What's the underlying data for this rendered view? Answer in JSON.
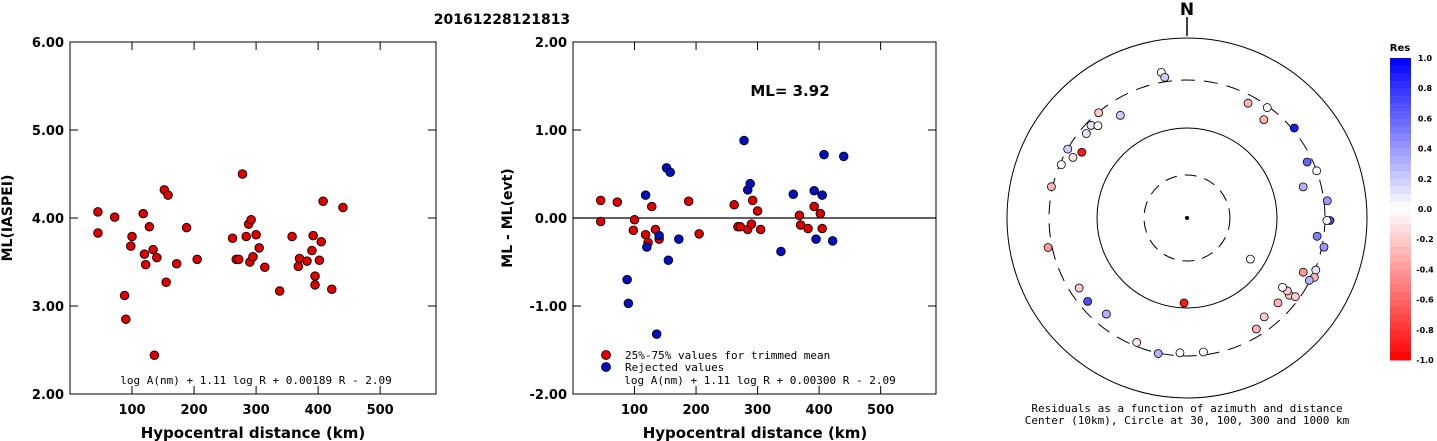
{
  "title": "20161228121813",
  "chart_data": [
    {
      "type": "scatter",
      "xlabel": "Hypocentral distance (km)",
      "ylabel": "ML(IASPEI)",
      "xlim": [
        0,
        590
      ],
      "ylim": [
        2.0,
        6.0
      ],
      "x_ticks": [
        "100",
        "200",
        "300",
        "400",
        "500"
      ],
      "y_ticks": [
        "2.00",
        "3.00",
        "4.00",
        "5.00",
        "6.00"
      ],
      "formula": "log A(nm) + 1.11 log R + 0.00189 R - 2.09",
      "marker_color": "#e00000",
      "points": [
        [
          45,
          4.07
        ],
        [
          45,
          3.83
        ],
        [
          72,
          4.01
        ],
        [
          88,
          3.12
        ],
        [
          90,
          2.85
        ],
        [
          98,
          3.68
        ],
        [
          100,
          3.79
        ],
        [
          118,
          4.05
        ],
        [
          120,
          3.59
        ],
        [
          122,
          3.47
        ],
        [
          128,
          3.9
        ],
        [
          134,
          3.64
        ],
        [
          136,
          2.44
        ],
        [
          140,
          3.55
        ],
        [
          152,
          4.32
        ],
        [
          155,
          3.27
        ],
        [
          158,
          4.26
        ],
        [
          172,
          3.48
        ],
        [
          188,
          3.89
        ],
        [
          205,
          3.53
        ],
        [
          262,
          3.77
        ],
        [
          268,
          3.53
        ],
        [
          272,
          3.53
        ],
        [
          278,
          4.5
        ],
        [
          284,
          3.79
        ],
        [
          288,
          3.93
        ],
        [
          290,
          3.5
        ],
        [
          292,
          3.98
        ],
        [
          295,
          3.56
        ],
        [
          300,
          3.81
        ],
        [
          305,
          3.66
        ],
        [
          314,
          3.44
        ],
        [
          338,
          3.17
        ],
        [
          358,
          3.79
        ],
        [
          368,
          3.45
        ],
        [
          370,
          3.54
        ],
        [
          382,
          3.51
        ],
        [
          390,
          3.63
        ],
        [
          392,
          3.8
        ],
        [
          395,
          3.24
        ],
        [
          395,
          3.34
        ],
        [
          402,
          3.52
        ],
        [
          405,
          3.73
        ],
        [
          408,
          4.19
        ],
        [
          422,
          3.19
        ],
        [
          440,
          4.12
        ]
      ]
    },
    {
      "type": "scatter",
      "xlabel": "Hypocentral distance (km)",
      "ylabel": "ML - ML(evt)",
      "xlim": [
        0,
        590
      ],
      "ylim": [
        -2.0,
        2.0
      ],
      "x_ticks": [
        "100",
        "200",
        "300",
        "400",
        "500"
      ],
      "y_ticks": [
        "-2.00",
        "-1.00",
        "0.00",
        "1.00",
        "2.00"
      ],
      "ml_label": "ML= 3.92",
      "formula": "log A(nm) + 1.11 log R + 0.00300 R - 2.09",
      "reference_line": 0.0,
      "series": [
        {
          "name": "25%-75% values for trimmed mean",
          "color": "#e00000",
          "points": [
            [
              45,
              0.2
            ],
            [
              45,
              -0.04
            ],
            [
              72,
              0.18
            ],
            [
              98,
              -0.14
            ],
            [
              100,
              -0.02
            ],
            [
              118,
              -0.19
            ],
            [
              122,
              -0.28
            ],
            [
              128,
              0.13
            ],
            [
              134,
              -0.13
            ],
            [
              140,
              -0.24
            ],
            [
              188,
              0.19
            ],
            [
              205,
              -0.18
            ],
            [
              262,
              0.15
            ],
            [
              268,
              -0.1
            ],
            [
              272,
              -0.1
            ],
            [
              284,
              -0.13
            ],
            [
              290,
              -0.07
            ],
            [
              292,
              0.2
            ],
            [
              300,
              0.08
            ],
            [
              305,
              -0.13
            ],
            [
              368,
              0.03
            ],
            [
              370,
              -0.08
            ],
            [
              382,
              -0.12
            ],
            [
              392,
              0.13
            ],
            [
              402,
              0.05
            ],
            [
              405,
              -0.12
            ]
          ]
        },
        {
          "name": "Rejected values",
          "color": "#0010c0",
          "points": [
            [
              88,
              -0.7
            ],
            [
              90,
              -0.97
            ],
            [
              118,
              0.26
            ],
            [
              120,
              -0.33
            ],
            [
              136,
              -1.32
            ],
            [
              140,
              -0.2
            ],
            [
              152,
              0.57
            ],
            [
              155,
              -0.48
            ],
            [
              158,
              0.52
            ],
            [
              172,
              -0.24
            ],
            [
              278,
              0.88
            ],
            [
              284,
              0.32
            ],
            [
              288,
              0.39
            ],
            [
              338,
              -0.38
            ],
            [
              358,
              0.27
            ],
            [
              392,
              0.31
            ],
            [
              395,
              -0.24
            ],
            [
              405,
              0.26
            ],
            [
              408,
              0.72
            ],
            [
              422,
              -0.26
            ],
            [
              440,
              0.7
            ]
          ]
        }
      ]
    },
    {
      "type": "scatter",
      "subtype": "polar",
      "north_label": "N",
      "caption_line1": "Residuals as a function of azimuth and distance",
      "caption_line2": "Center (10km), Circle at 30, 100, 300 and 1000 km",
      "colorbar_title": "Res",
      "colorbar_ticks": [
        "1.0",
        "0.8",
        "0.6",
        "0.4",
        "0.2",
        "0.0",
        "-0.2",
        "-0.4",
        "-0.6",
        "-0.8",
        "-1.0"
      ],
      "rings_km": [
        30,
        100,
        300,
        1000
      ],
      "points": [
        {
          "az": -67,
          "dist": 290,
          "res": 0.0
        },
        {
          "az": -60,
          "dist": 298,
          "res": 0.2
        },
        {
          "az": -40,
          "dist": 296,
          "res": -0.2
        },
        {
          "az": -46,
          "dist": 270,
          "res": 0.1
        },
        {
          "az": -50,
          "dist": 258,
          "res": 0.1
        },
        {
          "az": -58,
          "dist": 218,
          "res": -0.9
        },
        {
          "az": -62,
          "dist": 245,
          "res": -0.1
        },
        {
          "az": -44,
          "dist": 240,
          "res": 0.0
        },
        {
          "az": -33,
          "dist": 210,
          "res": 0.2
        },
        {
          "az": -10,
          "dist": 398,
          "res": 0.0
        },
        {
          "az": -9,
          "dist": 340,
          "res": 0.2
        },
        {
          "az": 36,
          "dist": 290,
          "res": 0.0
        },
        {
          "az": 28,
          "dist": 250,
          "res": -0.3
        },
        {
          "az": 38,
          "dist": 222,
          "res": -0.3
        },
        {
          "az": 50,
          "dist": 318,
          "res": 0.9
        },
        {
          "az": 70,
          "dist": 300,
          "res": 0.0
        },
        {
          "az": 65,
          "dist": 265,
          "res": 0.6
        },
        {
          "az": 83,
          "dist": 330,
          "res": 0.4
        },
        {
          "az": 91,
          "dist": 346,
          "res": 0.7
        },
        {
          "az": 91,
          "dist": 317,
          "res": 0.0
        },
        {
          "az": 102,
          "dist": 318,
          "res": 0.4
        },
        {
          "az": 112,
          "dist": 308,
          "res": 0.1
        },
        {
          "az": 115,
          "dist": 322,
          "res": -0.3
        },
        {
          "az": 117,
          "dist": 295,
          "res": 0.3
        },
        {
          "az": 98,
          "dist": 258,
          "res": 0.5
        },
        {
          "az": 75,
          "dist": 200,
          "res": 0.3
        },
        {
          "az": 115,
          "dist": 240,
          "res": -0.4
        },
        {
          "az": 127,
          "dist": 240,
          "res": -0.2
        },
        {
          "az": 126,
          "dist": 273,
          "res": -0.2
        },
        {
          "az": 133,
          "dist": 220,
          "res": -0.3
        },
        {
          "az": 126,
          "dist": 218,
          "res": -0.2
        },
        {
          "az": 142,
          "dist": 225,
          "res": -0.2
        },
        {
          "az": 126,
          "dist": 190,
          "res": 0.0
        },
        {
          "az": 148,
          "dist": 255,
          "res": -0.3
        },
        {
          "az": 123,
          "dist": 69,
          "res": 0.0
        },
        {
          "az": 173,
          "dist": 280,
          "res": 0.0
        },
        {
          "az": 183,
          "dist": 280,
          "res": 0.0
        },
        {
          "az": -178,
          "dist": 88,
          "res": -0.9
        },
        {
          "az": -168,
          "dist": 305,
          "res": 0.3
        },
        {
          "az": -158,
          "dist": 275,
          "res": -0.1
        },
        {
          "az": -140,
          "dist": 225,
          "res": 0.3
        },
        {
          "az": -130,
          "dist": 248,
          "res": 0.7
        },
        {
          "az": -123,
          "dist": 242,
          "res": -0.2
        },
        {
          "az": -77,
          "dist": 310,
          "res": -0.3
        },
        {
          "az": -102,
          "dist": 337,
          "res": -0.4
        }
      ]
    }
  ]
}
